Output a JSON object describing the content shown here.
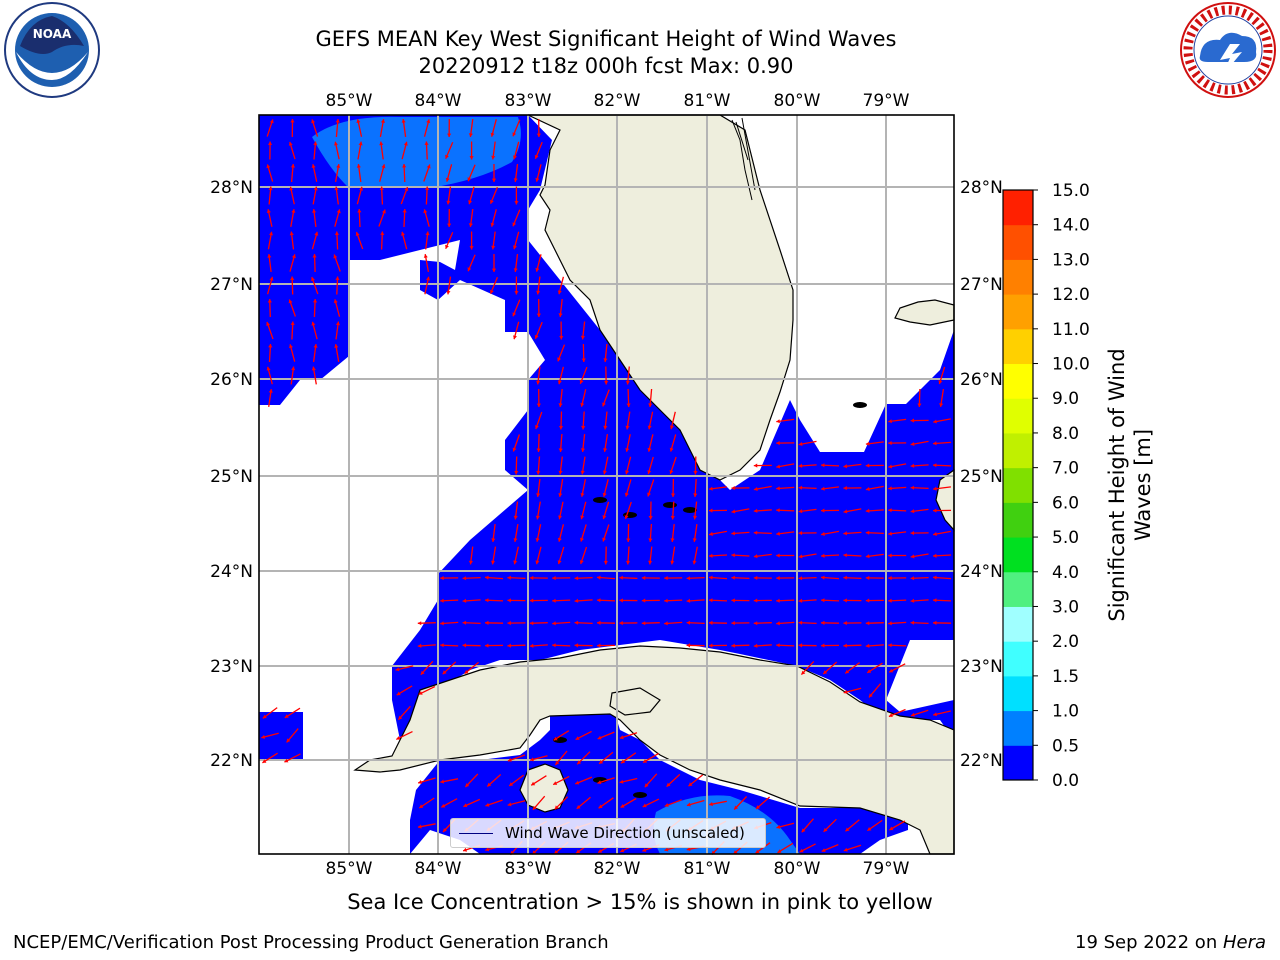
{
  "header": {
    "title_line1": "GEFS MEAN Key West Significant Height of Wind Waves",
    "title_line2": "20220912 t18z 000h fcst   Max: 0.90"
  },
  "logos": {
    "noaa_text": "NOAA",
    "noaa_ring": "NATIONAL OCEANIC AND ATMOSPHERIC ADMINISTRATION · U.S. DEPARTMENT OF COMMERCE",
    "nws_ring": "NATIONAL WEATHER SERVICE"
  },
  "map": {
    "lon_labels": [
      "85°W",
      "84°W",
      "83°W",
      "82°W",
      "81°W",
      "80°W",
      "79°W"
    ],
    "lat_labels": [
      "28°N",
      "27°N",
      "26°N",
      "25°N",
      "24°N",
      "23°N",
      "22°N"
    ],
    "water_color": "#0000ff",
    "land_color": "#eeeedd",
    "arrow_color": "#ff0000"
  },
  "legend": {
    "label": "Wind Wave Direction (unscaled)"
  },
  "colorbar": {
    "label": "Significant Height of Wind Waves [m]",
    "ticks": [
      "0.0",
      "0.5",
      "1.0",
      "1.5",
      "2.0",
      "3.0",
      "4.0",
      "5.0",
      "6.0",
      "7.0",
      "8.0",
      "9.0",
      "10.0",
      "11.0",
      "12.0",
      "13.0",
      "14.0",
      "15.0"
    ],
    "colors": [
      "#0000ff",
      "#0080ff",
      "#00e0ff",
      "#40ffff",
      "#a0ffff",
      "#50f080",
      "#00e020",
      "#40d010",
      "#80e000",
      "#c0f000",
      "#e0ff00",
      "#ffff00",
      "#ffd000",
      "#ffa000",
      "#ff8000",
      "#ff5000",
      "#ff2000"
    ]
  },
  "caption": "Sea Ice Concentration > 15% is shown in pink to yellow",
  "footer": {
    "left": "NCEP/EMC/Verification Post Processing Product Generation Branch",
    "right_date": "19 Sep 2022 on ",
    "right_host": "Hera"
  }
}
